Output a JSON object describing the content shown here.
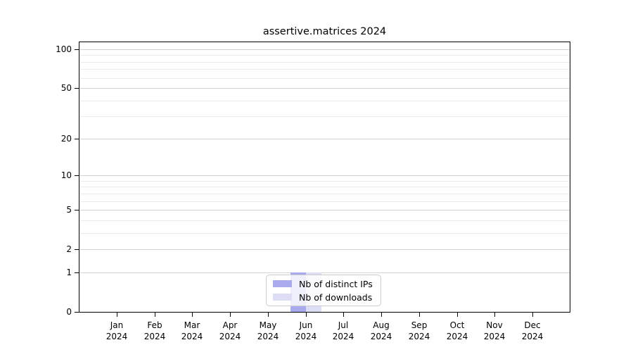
{
  "chart_data": {
    "type": "bar",
    "title": "assertive.matrices 2024",
    "categories": [
      "Jan",
      "Feb",
      "Mar",
      "Apr",
      "May",
      "Jun",
      "Jul",
      "Aug",
      "Sep",
      "Oct",
      "Nov",
      "Dec"
    ],
    "category_year": "2024",
    "series": [
      {
        "name": "Nb of distinct IPs",
        "color": "#aaaaee",
        "values": [
          0,
          0,
          0,
          0,
          0,
          1,
          0,
          0,
          0,
          0,
          0,
          0
        ]
      },
      {
        "name": "Nb of downloads",
        "color": "#ddddf6",
        "values": [
          0,
          0,
          0,
          0,
          0,
          1,
          0,
          0,
          0,
          0,
          0,
          0
        ]
      }
    ],
    "xlabel": "",
    "ylabel": "",
    "ylim": [
      0,
      100
    ],
    "yscale": "log1p",
    "y_major_ticks": [
      0,
      1,
      2,
      5,
      10,
      20,
      50,
      100
    ],
    "y_minor_ticks": [
      3,
      4,
      6,
      7,
      8,
      9,
      30,
      40,
      60,
      70,
      80,
      90
    ],
    "grid": true,
    "legend_position": "bottom-center"
  }
}
